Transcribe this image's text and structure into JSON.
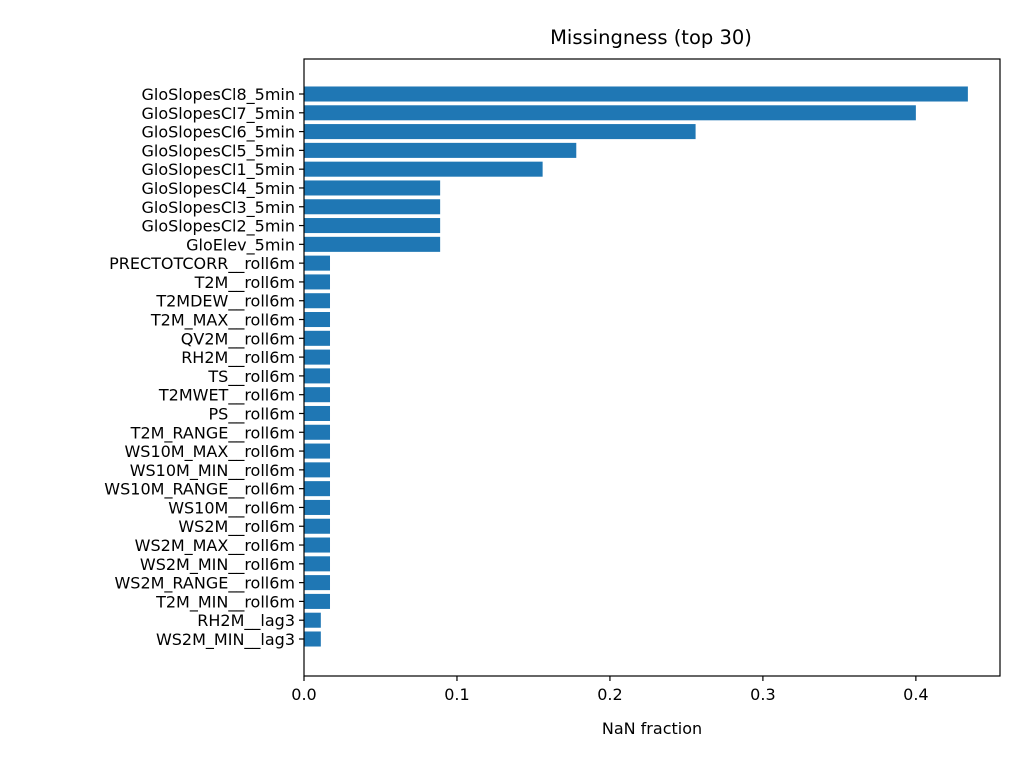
{
  "chart_data": {
    "type": "bar",
    "orientation": "horizontal",
    "title": "Missingness (top 30)",
    "xlabel": "NaN fraction",
    "ylabel": "",
    "xlim": [
      0.0,
      0.455
    ],
    "xticks": [
      0.0,
      0.1,
      0.2,
      0.3,
      0.4
    ],
    "xtick_labels": [
      "0.0",
      "0.1",
      "0.2",
      "0.3",
      "0.4"
    ],
    "bar_color": "#1f77b4",
    "grid": false,
    "categories": [
      "GloSlopesCl8_5min",
      "GloSlopesCl7_5min",
      "GloSlopesCl6_5min",
      "GloSlopesCl5_5min",
      "GloSlopesCl1_5min",
      "GloSlopesCl4_5min",
      "GloSlopesCl3_5min",
      "GloSlopesCl2_5min",
      "GloElev_5min",
      "PRECTOTCORR__roll6m",
      "T2M__roll6m",
      "T2MDEW__roll6m",
      "T2M_MAX__roll6m",
      "QV2M__roll6m",
      "RH2M__roll6m",
      "TS__roll6m",
      "T2MWET__roll6m",
      "PS__roll6m",
      "T2M_RANGE__roll6m",
      "WS10M_MAX__roll6m",
      "WS10M_MIN__roll6m",
      "WS10M_RANGE__roll6m",
      "WS10M__roll6m",
      "WS2M__roll6m",
      "WS2M_MAX__roll6m",
      "WS2M_MIN__roll6m",
      "WS2M_RANGE__roll6m",
      "T2M_MIN__roll6m",
      "RH2M__lag3",
      "WS2M_MIN__lag3"
    ],
    "values": [
      0.434,
      0.4,
      0.256,
      0.178,
      0.156,
      0.089,
      0.089,
      0.089,
      0.089,
      0.017,
      0.017,
      0.017,
      0.017,
      0.017,
      0.017,
      0.017,
      0.017,
      0.017,
      0.017,
      0.017,
      0.017,
      0.017,
      0.017,
      0.017,
      0.017,
      0.017,
      0.017,
      0.017,
      0.011,
      0.011
    ]
  }
}
